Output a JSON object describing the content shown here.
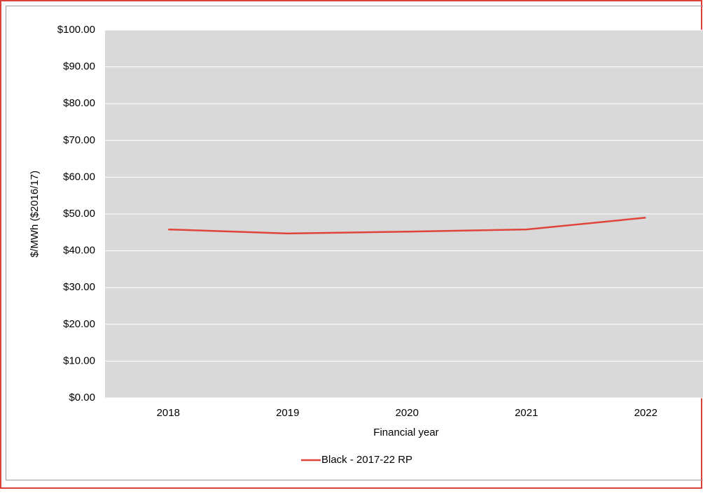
{
  "chart_data": {
    "type": "line",
    "x_label": "Financial year",
    "y_label": "$/MWh ($2016/17)",
    "categories": [
      "2018",
      "2019",
      "2020",
      "2021",
      "2022"
    ],
    "series": [
      {
        "name": "Black - 2017-22 RP",
        "color": "#e0443a",
        "values": [
          45.8,
          44.7,
          45.2,
          45.8,
          49.0
        ]
      }
    ],
    "ylim": [
      0,
      100
    ],
    "yticks": [
      {
        "value": 0,
        "label": "$0.00"
      },
      {
        "value": 10,
        "label": "$10.00"
      },
      {
        "value": 20,
        "label": "$20.00"
      },
      {
        "value": 30,
        "label": "$30.00"
      },
      {
        "value": 40,
        "label": "$40.00"
      },
      {
        "value": 50,
        "label": "$50.00"
      },
      {
        "value": 60,
        "label": "$60.00"
      },
      {
        "value": 70,
        "label": "$70.00"
      },
      {
        "value": 80,
        "label": "$80.00"
      },
      {
        "value": 90,
        "label": "$90.00"
      },
      {
        "value": 100,
        "label": "$100.00"
      }
    ],
    "grid": true,
    "legend": "bottom"
  }
}
